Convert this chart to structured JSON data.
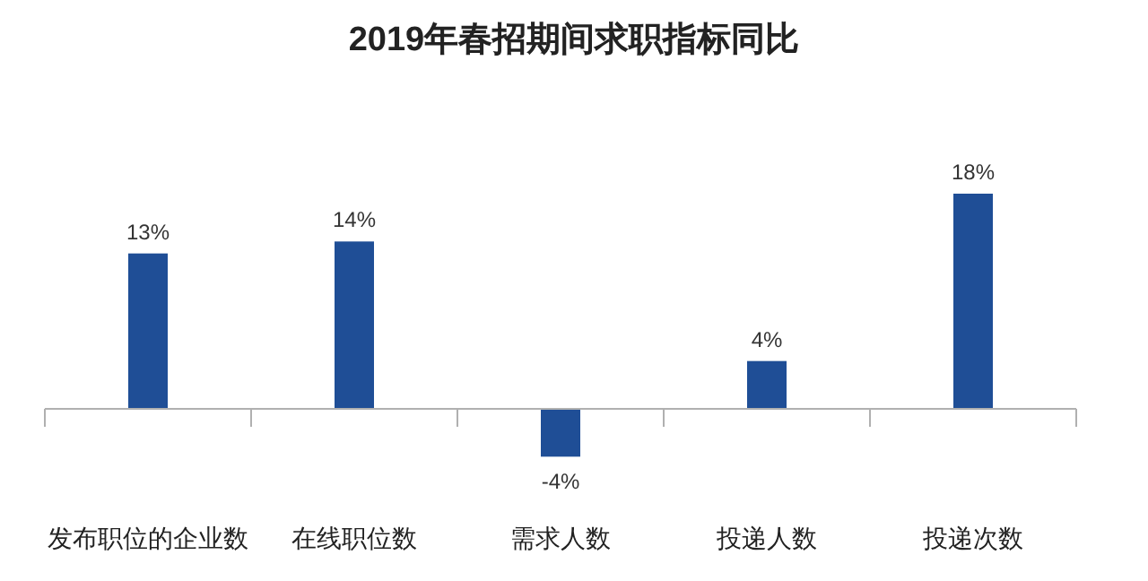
{
  "chart_data": {
    "type": "bar",
    "title": "2019年春招期间求职指标同比",
    "categories": [
      "发布职位的企业数",
      "在线职位数",
      "需求人数",
      "投递人数",
      "投递次数"
    ],
    "values": [
      13,
      14,
      -4,
      4,
      18
    ],
    "value_labels": [
      "13%",
      "14%",
      "-4%",
      "4%",
      "18%"
    ],
    "color": "#1f4e96"
  }
}
